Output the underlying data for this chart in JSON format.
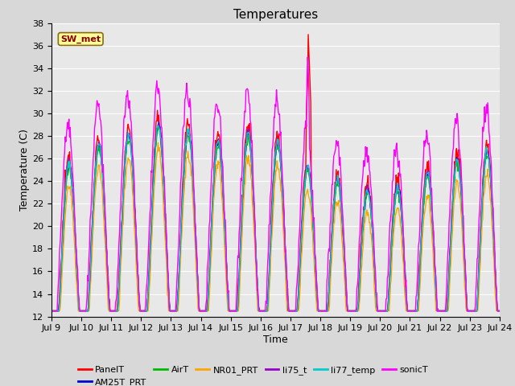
{
  "title": "Temperatures",
  "xlabel": "Time",
  "ylabel": "Temperature (C)",
  "ylim": [
    12,
    38
  ],
  "annotation_text": "SW_met",
  "annotation_color": "#8B0000",
  "annotation_bg": "#FFFF99",
  "annotation_border": "#8B6914",
  "series": {
    "PanelT": {
      "color": "#FF0000",
      "lw": 1.0
    },
    "AM25T_PRT": {
      "color": "#0000CC",
      "lw": 1.0
    },
    "AirT": {
      "color": "#00BB00",
      "lw": 1.0
    },
    "NR01_PRT": {
      "color": "#FFA500",
      "lw": 1.0
    },
    "li75_t": {
      "color": "#9900CC",
      "lw": 1.0
    },
    "li77_temp": {
      "color": "#00CCCC",
      "lw": 1.0
    },
    "sonicT": {
      "color": "#FF00FF",
      "lw": 1.0
    }
  },
  "xtick_labels": [
    "Jul 9",
    "Jul 10",
    "Jul 11",
    "Jul 12",
    "Jul 13",
    "Jul 14",
    "Jul 15",
    "Jul 16",
    "Jul 17",
    "Jul 18",
    "Jul 19",
    "Jul 20",
    "Jul 21",
    "Jul 22",
    "Jul 23",
    "Jul 24"
  ],
  "bg_color": "#E8E8E8",
  "grid_color": "#FFFFFF",
  "title_fontsize": 11,
  "axis_fontsize": 9,
  "tick_fontsize": 8,
  "legend_fontsize": 8
}
